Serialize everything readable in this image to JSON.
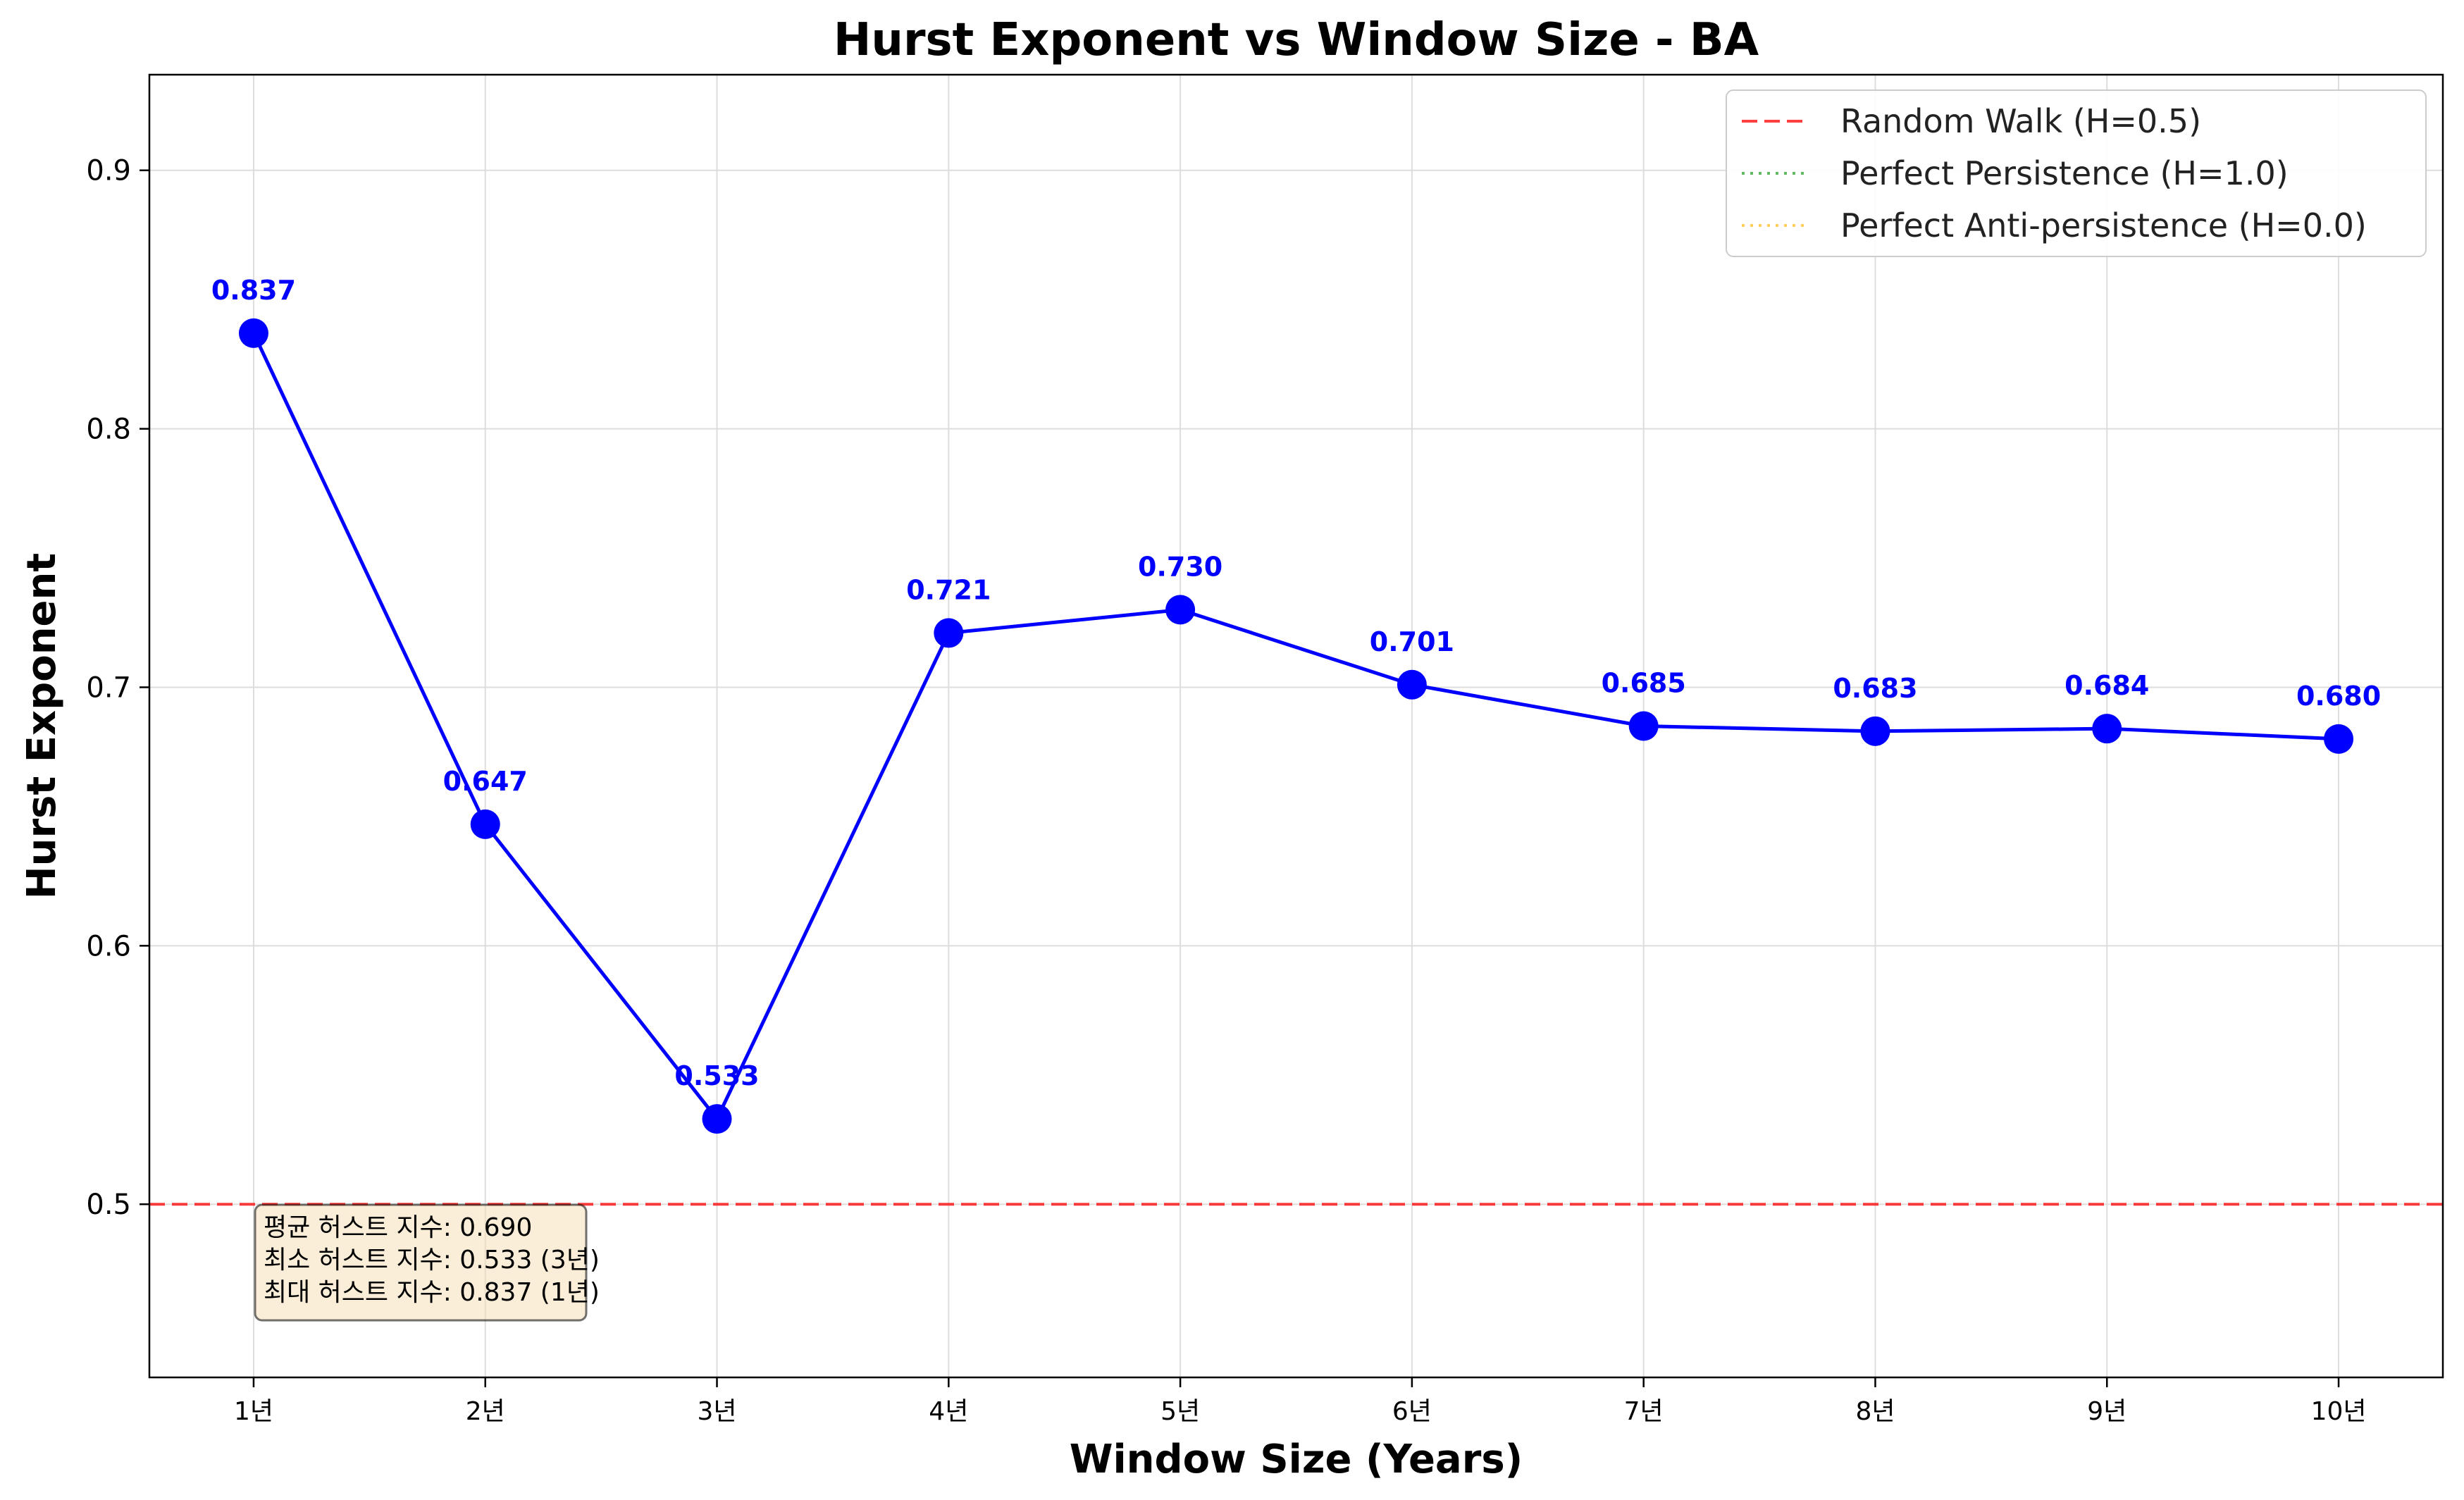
{
  "chart_data": {
    "type": "line",
    "title": "Hurst Exponent vs Window Size - BA",
    "xlabel": "Window Size (Years)",
    "ylabel": "Hurst Exponent",
    "categories": [
      "1년",
      "2년",
      "3년",
      "4년",
      "5년",
      "6년",
      "7년",
      "8년",
      "9년",
      "10년"
    ],
    "x": [
      1,
      2,
      3,
      4,
      5,
      6,
      7,
      8,
      9,
      10
    ],
    "series": [
      {
        "values": [
          0.837,
          0.647,
          0.533,
          0.721,
          0.73,
          0.701,
          0.685,
          0.683,
          0.684,
          0.68
        ],
        "labels": [
          "0.837",
          "0.647",
          "0.533",
          "0.721",
          "0.730",
          "0.701",
          "0.685",
          "0.683",
          "0.684",
          "0.680"
        ],
        "color": "#0000ff"
      }
    ],
    "ylim": [
      0.433,
      0.937
    ],
    "xlim": [
      0.55,
      10.45
    ],
    "yticks": [
      0.5,
      0.6,
      0.7,
      0.8,
      0.9
    ],
    "ytick_labels": [
      "0.5",
      "0.6",
      "0.7",
      "0.8",
      "0.9"
    ],
    "grid": true,
    "reference_lines": [
      {
        "y": 0.5,
        "label": "Random Walk (H=0.5)",
        "color": "#ff0000",
        "style": "dashed"
      },
      {
        "y": 1.0,
        "label": "Perfect Persistence (H=1.0)",
        "color": "#2ca02c",
        "style": "dotted"
      },
      {
        "y": 0.0,
        "label": "Perfect Anti-persistence (H=0.0)",
        "color": "#ffc125",
        "style": "dotted"
      }
    ],
    "legend_position": "top-right",
    "stats_box": [
      "평균 허스트 지수: 0.690",
      "최소 허스트 지수: 0.533 (3년)",
      "최대 허스트 지수: 0.837 (1년)"
    ]
  }
}
